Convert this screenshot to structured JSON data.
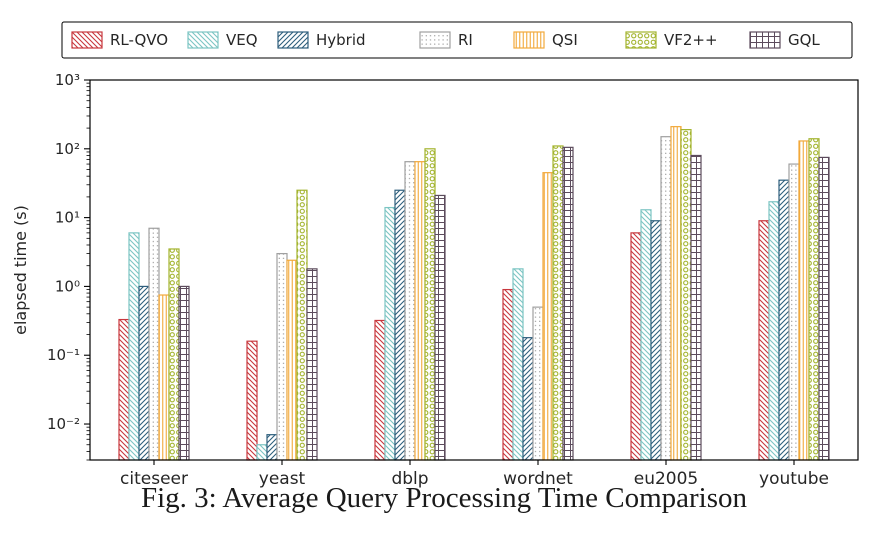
{
  "caption": "Fig. 3: Average Query Processing Time Comparison",
  "chart_data": {
    "type": "bar",
    "yscale": "log",
    "title": "",
    "xlabel": "",
    "ylabel": "elapsed time (s)",
    "ylim": [
      0.003,
      1000
    ],
    "yticks": [
      0.01,
      0.1,
      1,
      10,
      100,
      1000
    ],
    "ytick_labels": [
      "10⁻²",
      "10⁻¹",
      "10⁰",
      "10¹",
      "10²",
      "10³"
    ],
    "categories": [
      "citeseer",
      "yeast",
      "dblp",
      "wordnet",
      "eu2005",
      "youtube"
    ],
    "legend_position": "top",
    "grid": false,
    "series": [
      {
        "name": "RL-QVO",
        "color": "#c8373d",
        "hatch": "backslash",
        "values": [
          0.33,
          0.16,
          0.32,
          0.9,
          6,
          9
        ]
      },
      {
        "name": "VEQ",
        "color": "#7cc5c3",
        "hatch": "backslash",
        "values": [
          6,
          0.005,
          14,
          1.8,
          13,
          17
        ]
      },
      {
        "name": "Hybrid",
        "color": "#2e5f7d",
        "hatch": "slash",
        "values": [
          1.0,
          0.007,
          25,
          0.18,
          9,
          35
        ]
      },
      {
        "name": "RI",
        "color": "#a0a0a0",
        "hatch": "dots",
        "values": [
          7,
          3,
          65,
          0.5,
          150,
          60
        ]
      },
      {
        "name": "QSI",
        "color": "#f2a93b",
        "hatch": "vertical",
        "values": [
          0.75,
          2.4,
          65,
          45,
          210,
          130
        ]
      },
      {
        "name": "VF2++",
        "color": "#a3b42e",
        "hatch": "circles",
        "values": [
          3.5,
          25,
          100,
          110,
          190,
          140
        ]
      },
      {
        "name": "GQL",
        "color": "#5c4b5c",
        "hatch": "grid",
        "values": [
          1.0,
          1.8,
          21,
          105,
          80,
          75
        ]
      }
    ]
  }
}
